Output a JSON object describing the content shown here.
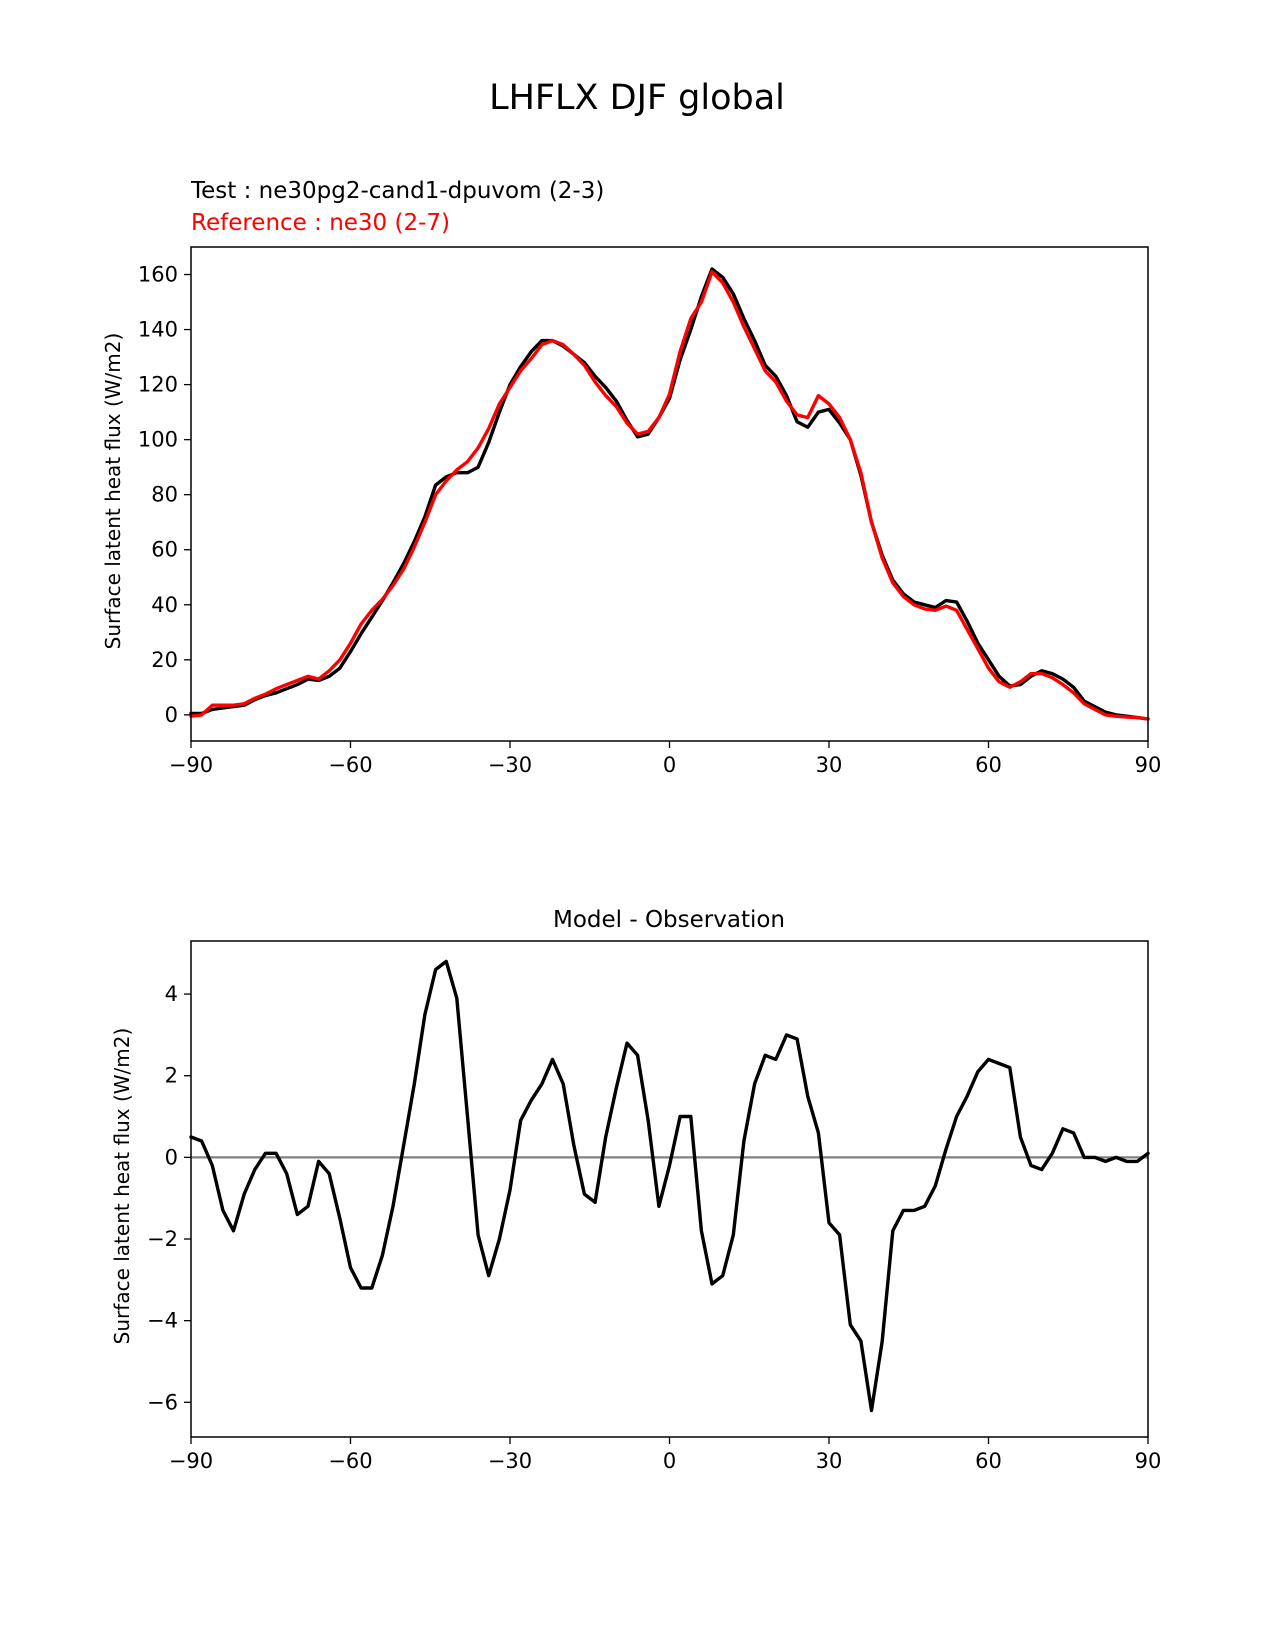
{
  "figure_title": "LHFLX DJF global",
  "chart_data": [
    {
      "type": "line",
      "legend_test": "Test : ne30pg2-cand1-dpuvom (2-3)",
      "legend_reference": "Reference : ne30 (2-7)",
      "ylabel": "Surface latent heat flux (W/m2)",
      "xlabel": "",
      "xlim": [
        -90,
        90
      ],
      "ylim": [
        -9.5,
        170
      ],
      "xticks": [
        -90,
        -60,
        -30,
        0,
        30,
        60,
        90
      ],
      "xtick_labels": [
        "−90",
        "−60",
        "−30",
        "0",
        "30",
        "60",
        "90"
      ],
      "yticks": [
        0,
        20,
        40,
        60,
        80,
        100,
        120,
        140,
        160
      ],
      "ytick_labels": [
        "0",
        "20",
        "40",
        "60",
        "80",
        "100",
        "120",
        "140",
        "160"
      ],
      "series": [
        {
          "name": "Test",
          "color": "#000000",
          "x": [
            -90,
            -88,
            -86,
            -84,
            -82,
            -80,
            -78,
            -76,
            -74,
            -72,
            -70,
            -68,
            -66,
            -64,
            -62,
            -60,
            -58,
            -56,
            -54,
            -52,
            -50,
            -48,
            -46,
            -44,
            -42,
            -40,
            -38,
            -36,
            -34,
            -32,
            -30,
            -28,
            -26,
            -24,
            -22,
            -20,
            -18,
            -16,
            -14,
            -12,
            -10,
            -8,
            -6,
            -4,
            -2,
            0,
            2,
            4,
            6,
            8,
            10,
            12,
            14,
            16,
            18,
            20,
            22,
            24,
            26,
            28,
            30,
            32,
            34,
            36,
            38,
            40,
            42,
            44,
            46,
            48,
            50,
            52,
            54,
            56,
            58,
            60,
            62,
            64,
            66,
            68,
            70,
            72,
            74,
            76,
            78,
            80,
            82,
            84,
            86,
            88,
            90
          ],
          "values": [
            0.5,
            0.5,
            2,
            2.5,
            3,
            3.5,
            5.5,
            7,
            8,
            9.5,
            11,
            13,
            12.5,
            14,
            17,
            23,
            29.5,
            35.5,
            41.5,
            48,
            55,
            63,
            72,
            83.5,
            86.5,
            88,
            88,
            90,
            99,
            110,
            120,
            126.5,
            132,
            136,
            136,
            134,
            131,
            128,
            123,
            119,
            114,
            107,
            101,
            102,
            108,
            115,
            129,
            140,
            152,
            162,
            159,
            153,
            144,
            136,
            127,
            123,
            116,
            106.5,
            104.5,
            110,
            111,
            106,
            100,
            87,
            70,
            58,
            49,
            44,
            41,
            40,
            39,
            41.5,
            41,
            34,
            26,
            20,
            14,
            10.5,
            11,
            14,
            16,
            15,
            13,
            10,
            5,
            3,
            1,
            0,
            -0.5,
            -1,
            -1.5
          ]
        },
        {
          "name": "Reference",
          "color": "#ff0000",
          "x": [
            -90,
            -88,
            -86,
            -84,
            -82,
            -80,
            -78,
            -76,
            -74,
            -72,
            -70,
            -68,
            -66,
            -64,
            -62,
            -60,
            -58,
            -56,
            -54,
            -52,
            -50,
            -48,
            -46,
            -44,
            -42,
            -40,
            -38,
            -36,
            -34,
            -32,
            -30,
            -28,
            -26,
            -24,
            -22,
            -20,
            -18,
            -16,
            -14,
            -12,
            -10,
            -8,
            -6,
            -4,
            -2,
            0,
            2,
            4,
            6,
            8,
            10,
            12,
            14,
            16,
            18,
            20,
            22,
            24,
            26,
            28,
            30,
            32,
            34,
            36,
            38,
            40,
            42,
            44,
            46,
            48,
            50,
            52,
            54,
            56,
            58,
            60,
            62,
            64,
            66,
            68,
            70,
            72,
            74,
            76,
            78,
            80,
            82,
            84,
            86,
            88,
            90
          ],
          "values": [
            -0.5,
            0,
            3.5,
            3.5,
            3.5,
            4,
            6,
            7.5,
            9.5,
            11,
            12.5,
            14,
            13,
            16,
            20,
            26,
            33,
            38,
            42,
            47,
            53,
            61,
            70,
            80,
            85,
            89,
            92,
            97,
            104,
            113,
            119,
            125,
            129.5,
            134.5,
            136,
            134.5,
            131,
            127,
            121,
            116,
            112,
            106,
            102,
            103,
            108,
            116.5,
            132,
            144,
            150,
            161,
            157,
            150,
            141,
            133,
            125,
            121,
            114,
            109,
            108,
            116,
            113,
            108,
            100,
            88,
            70,
            57,
            48,
            43,
            40,
            38.5,
            38,
            39.5,
            38,
            31,
            24,
            17,
            12,
            10,
            12,
            15,
            15,
            13.5,
            11,
            8,
            4,
            2,
            0,
            -0.5,
            -0.8,
            -1,
            -1.5
          ]
        }
      ]
    },
    {
      "type": "line",
      "title": "Model - Observation",
      "ylabel": "Surface latent heat flux (W/m2)",
      "xlabel": "",
      "xlim": [
        -90,
        90
      ],
      "ylim": [
        -6.85,
        5.3
      ],
      "xticks": [
        -90,
        -60,
        -30,
        0,
        30,
        60,
        90
      ],
      "xtick_labels": [
        "−90",
        "−60",
        "−30",
        "0",
        "30",
        "60",
        "90"
      ],
      "yticks": [
        -6,
        -4,
        -2,
        0,
        2,
        4
      ],
      "ytick_labels": [
        "−6",
        "−4",
        "−2",
        "0",
        "2",
        "4"
      ],
      "zero_line_color": "#808080",
      "series": [
        {
          "name": "Model - Observation",
          "color": "#000000",
          "x": [
            -90,
            -88,
            -86,
            -84,
            -82,
            -80,
            -78,
            -76,
            -74,
            -72,
            -70,
            -68,
            -66,
            -64,
            -62,
            -60,
            -58,
            -56,
            -54,
            -52,
            -50,
            -48,
            -46,
            -44,
            -42,
            -40,
            -38,
            -36,
            -34,
            -32,
            -30,
            -28,
            -26,
            -24,
            -22,
            -20,
            -18,
            -16,
            -14,
            -12,
            -10,
            -8,
            -6,
            -4,
            -2,
            0,
            2,
            4,
            6,
            8,
            10,
            12,
            14,
            16,
            18,
            20,
            22,
            24,
            26,
            28,
            30,
            32,
            34,
            36,
            38,
            40,
            42,
            44,
            46,
            48,
            50,
            52,
            54,
            56,
            58,
            60,
            62,
            64,
            66,
            68,
            70,
            72,
            74,
            76,
            78,
            80,
            82,
            84,
            86,
            88,
            90
          ],
          "values": [
            0.5,
            0.4,
            -0.2,
            -1.3,
            -1.8,
            -0.9,
            -0.3,
            0.1,
            0.1,
            -0.4,
            -1.4,
            -1.2,
            -0.1,
            -0.4,
            -1.5,
            -2.7,
            -3.2,
            -3.2,
            -2.4,
            -1.2,
            0.3,
            1.8,
            3.5,
            4.6,
            4.8,
            3.9,
            1.0,
            -1.9,
            -2.9,
            -2.0,
            -0.8,
            0.9,
            1.4,
            1.8,
            2.4,
            1.8,
            0.3,
            -0.9,
            -1.1,
            0.5,
            1.7,
            2.8,
            2.5,
            0.9,
            -1.2,
            -0.2,
            1.0,
            1.0,
            -1.8,
            -3.1,
            -2.9,
            -1.9,
            0.4,
            1.8,
            2.5,
            2.4,
            3.0,
            2.9,
            1.5,
            0.6,
            -1.6,
            -1.9,
            -4.1,
            -4.5,
            -6.2,
            -4.5,
            -1.8,
            -1.3,
            -1.3,
            -1.2,
            -0.7,
            0.2,
            1.0,
            1.5,
            2.1,
            2.4,
            2.3,
            2.2,
            0.5,
            -0.2,
            -0.3,
            0.1,
            0.7,
            0.6,
            0.0,
            0.0,
            -0.1,
            0.0,
            -0.1,
            -0.1,
            0.1
          ]
        }
      ]
    }
  ]
}
